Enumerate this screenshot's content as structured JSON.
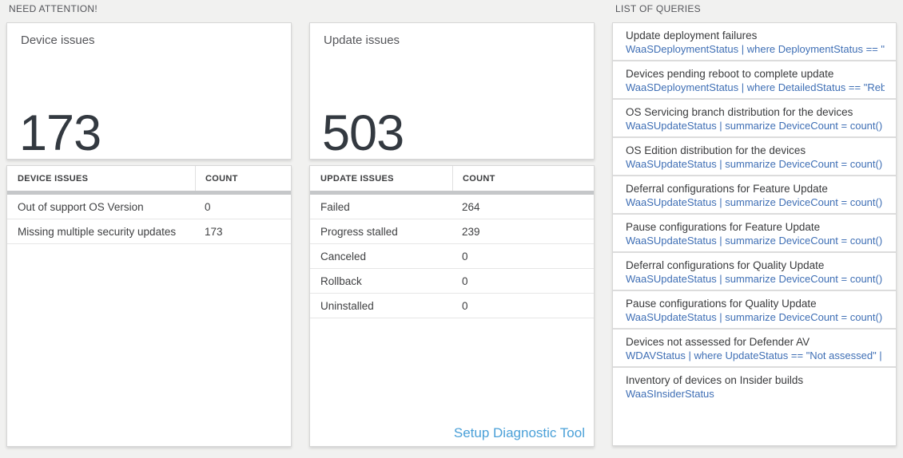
{
  "colors": {
    "background": "#f1f1f0",
    "big_number": "#333940",
    "query_link_blue": "#3f6fb5",
    "diag_link_blue": "#4aa0d8",
    "thick_separator": "#c5c7c9"
  },
  "sections": {
    "need_attention_title": "NEED ATTENTION!",
    "queries_title": "LIST OF QUERIES"
  },
  "device_card": {
    "title": "Device issues",
    "count": "173"
  },
  "device_table": {
    "headers": {
      "name": "DEVICE ISSUES",
      "count": "COUNT"
    },
    "rows": [
      {
        "label": "Out of support OS Version",
        "count": "0"
      },
      {
        "label": "Missing multiple security updates",
        "count": "173"
      }
    ]
  },
  "update_card": {
    "title": "Update issues",
    "count": "503"
  },
  "update_table": {
    "headers": {
      "name": "UPDATE ISSUES",
      "count": "COUNT"
    },
    "rows": [
      {
        "label": "Failed",
        "count": "264"
      },
      {
        "label": "Progress stalled",
        "count": "239"
      },
      {
        "label": "Canceled",
        "count": "0"
      },
      {
        "label": "Rollback",
        "count": "0"
      },
      {
        "label": "Uninstalled",
        "count": "0"
      }
    ],
    "link_label": "Setup Diagnostic Tool"
  },
  "queries": [
    {
      "title": "Update deployment failures",
      "query": "WaaSDeploymentStatus | where DeploymentStatus == \"Failed\" |..."
    },
    {
      "title": "Devices pending reboot to complete update",
      "query": "WaaSDeploymentStatus | where DetailedStatus == \"Reboot pend..."
    },
    {
      "title": "OS Servicing branch distribution for the devices",
      "query": "WaaSUpdateStatus | summarize DeviceCount = count() by OSSer..."
    },
    {
      "title": "OS Edition distribution for the devices",
      "query": "WaaSUpdateStatus | summarize DeviceCount = count() by OSEdit..."
    },
    {
      "title": "Deferral configurations for Feature Update",
      "query": "WaaSUpdateStatus | summarize DeviceCount = count() by Featur..."
    },
    {
      "title": "Pause configurations for Feature Update",
      "query": "WaaSUpdateStatus | summarize DeviceCount = count() by Featur..."
    },
    {
      "title": "Deferral configurations for Quality Update",
      "query": "WaaSUpdateStatus | summarize DeviceCount = count() by Qualit..."
    },
    {
      "title": "Pause configurations for Quality Update",
      "query": "WaaSUpdateStatus | summarize DeviceCount = count() by Qualit..."
    },
    {
      "title": "Devices not assessed for Defender AV",
      "query": "WDAVStatus | where UpdateStatus == \"Not assessed\" | render ta..."
    },
    {
      "title": "Inventory of devices on Insider builds",
      "query": "WaaSInsiderStatus"
    }
  ]
}
